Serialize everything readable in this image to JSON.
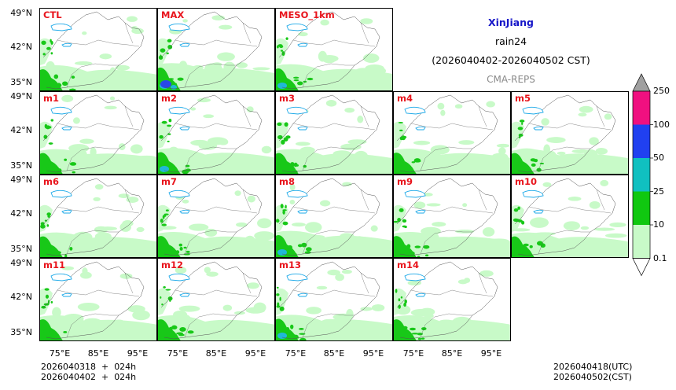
{
  "title": {
    "region": "XinJiang",
    "variable": "rain24",
    "period": "(2026040402-2026040502 CST)",
    "source": "CMA-REPS"
  },
  "panels": [
    {
      "label": "CTL",
      "row": 0,
      "col": 0,
      "wet": 1.0
    },
    {
      "label": "MAX",
      "row": 0,
      "col": 1,
      "wet": 1.4
    },
    {
      "label": "MESO_1km",
      "row": 0,
      "col": 2,
      "wet": 1.2
    },
    {
      "label": "m1",
      "row": 1,
      "col": 0,
      "wet": 0.9
    },
    {
      "label": "m2",
      "row": 1,
      "col": 1,
      "wet": 1.1
    },
    {
      "label": "m3",
      "row": 1,
      "col": 2,
      "wet": 0.9
    },
    {
      "label": "m4",
      "row": 1,
      "col": 3,
      "wet": 1.0
    },
    {
      "label": "m5",
      "row": 1,
      "col": 4,
      "wet": 0.9
    },
    {
      "label": "m6",
      "row": 2,
      "col": 0,
      "wet": 0.9
    },
    {
      "label": "m7",
      "row": 2,
      "col": 1,
      "wet": 1.0
    },
    {
      "label": "m8",
      "row": 2,
      "col": 2,
      "wet": 1.2
    },
    {
      "label": "m9",
      "row": 2,
      "col": 3,
      "wet": 1.0
    },
    {
      "label": "m10",
      "row": 2,
      "col": 4,
      "wet": 0.9
    },
    {
      "label": "m11",
      "row": 3,
      "col": 0,
      "wet": 1.0
    },
    {
      "label": "m12",
      "row": 3,
      "col": 1,
      "wet": 1.0
    },
    {
      "label": "m13",
      "row": 3,
      "col": 2,
      "wet": 1.1
    },
    {
      "label": "m14",
      "row": 3,
      "col": 3,
      "wet": 1.0
    }
  ],
  "lat_ticks": [
    "49°N",
    "42°N",
    "35°N"
  ],
  "lon_ticks": [
    "75°E",
    "85°E",
    "95°E"
  ],
  "colorbar": {
    "levels": [
      "0.1",
      "10",
      "25",
      "50",
      "100",
      "250"
    ],
    "colors": [
      "#c8fac8",
      "#10c810",
      "#10c0c0",
      "#2040f0",
      "#f01080",
      "#a0a0a0"
    ]
  },
  "map_colors": {
    "light": "#c8fac8",
    "green": "#18c818",
    "cyan": "#20b8d8",
    "blue": "#2848e8",
    "lake": "#1aa8e8"
  },
  "footer": {
    "init_utc": "2026040318  +  024h",
    "init_cst": "2026040402  +  024h",
    "valid_utc": "2026040418(UTC)",
    "valid_cst": "2026040502(CST)"
  }
}
